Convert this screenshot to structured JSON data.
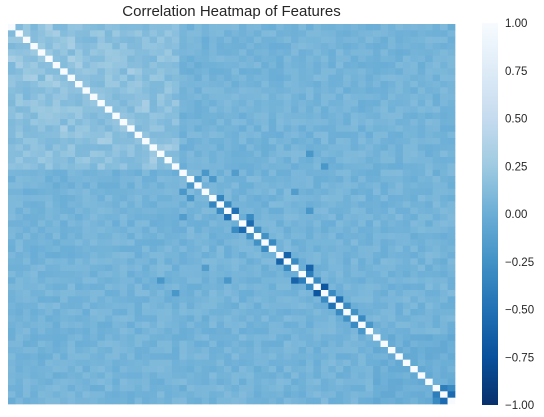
{
  "chart_data": {
    "type": "heatmap",
    "title": "Correlation Heatmap of Features",
    "xlabel": "",
    "ylabel": "",
    "value_range": [
      -1.0,
      1.0
    ],
    "n_features": 60,
    "show_axis_tick_labels": false,
    "grid": false,
    "colormap": "Blues_r",
    "colormap_stops": [
      "#08306b",
      "#08519c",
      "#2171b5",
      "#4292c6",
      "#6baed6",
      "#9ecae1",
      "#c6dbef",
      "#deebf7",
      "#f7fbff"
    ],
    "colorbar": {
      "placement": "right",
      "ticks": [
        -1.0,
        -0.75,
        -0.5,
        -0.25,
        0.0,
        0.25,
        0.5,
        0.75,
        1.0
      ],
      "tick_labels": [
        "−1.00",
        "−0.75",
        "−0.50",
        "−0.25",
        "0.00",
        "0.25",
        "0.50",
        "0.75",
        "1.00"
      ]
    },
    "typical_offdiagonal_value": 0.05,
    "diagonal_value": 1.0,
    "notable_correlations": [
      {
        "i": 0,
        "j": 5,
        "value": 0.3
      },
      {
        "i": 1,
        "j": 6,
        "value": 0.3
      },
      {
        "i": 2,
        "j": 8,
        "value": 0.28
      },
      {
        "i": 5,
        "j": 8,
        "value": 0.32
      },
      {
        "i": 6,
        "j": 9,
        "value": 0.3
      },
      {
        "i": 3,
        "j": 8,
        "value": 0.3
      },
      {
        "i": 0,
        "j": 2,
        "value": 0.22
      },
      {
        "i": 0,
        "j": 9,
        "value": 0.2
      },
      {
        "i": 1,
        "j": 11,
        "value": 0.22
      },
      {
        "i": 2,
        "j": 12,
        "value": 0.2
      },
      {
        "i": 3,
        "j": 13,
        "value": 0.22
      },
      {
        "i": 4,
        "j": 14,
        "value": 0.22
      },
      {
        "i": 6,
        "j": 13,
        "value": 0.25
      },
      {
        "i": 7,
        "j": 16,
        "value": 0.3
      },
      {
        "i": 8,
        "j": 15,
        "value": 0.22
      },
      {
        "i": 10,
        "j": 16,
        "value": 0.22
      },
      {
        "i": 12,
        "j": 18,
        "value": 0.3
      },
      {
        "i": 13,
        "j": 18,
        "value": 0.28
      },
      {
        "i": 14,
        "j": 19,
        "value": 0.2
      },
      {
        "i": 16,
        "j": 20,
        "value": 0.2
      },
      {
        "i": 18,
        "j": 22,
        "value": 0.2
      },
      {
        "i": 19,
        "j": 21,
        "value": 0.3
      },
      {
        "i": 23,
        "j": 26,
        "value": -0.2
      },
      {
        "i": 24,
        "j": 25,
        "value": -0.2
      },
      {
        "i": 24,
        "j": 27,
        "value": -0.2
      },
      {
        "i": 27,
        "j": 28,
        "value": -0.35
      },
      {
        "i": 28,
        "j": 29,
        "value": -0.3
      },
      {
        "i": 29,
        "j": 30,
        "value": -0.5
      },
      {
        "i": 30,
        "j": 32,
        "value": -0.3
      },
      {
        "i": 31,
        "j": 32,
        "value": -0.55
      },
      {
        "i": 32,
        "j": 33,
        "value": -0.25
      },
      {
        "i": 33,
        "j": 34,
        "value": -0.25
      },
      {
        "i": 34,
        "j": 35,
        "value": -0.3
      },
      {
        "i": 36,
        "j": 37,
        "value": -0.6
      },
      {
        "i": 37,
        "j": 38,
        "value": -0.3
      },
      {
        "i": 38,
        "j": 40,
        "value": -0.6
      },
      {
        "i": 39,
        "j": 40,
        "value": -0.4
      },
      {
        "i": 40,
        "j": 41,
        "value": -0.3
      },
      {
        "i": 41,
        "j": 42,
        "value": -0.7
      },
      {
        "i": 42,
        "j": 43,
        "value": -0.3
      },
      {
        "i": 43,
        "j": 44,
        "value": -0.5
      },
      {
        "i": 44,
        "j": 45,
        "value": -0.3
      },
      {
        "i": 45,
        "j": 46,
        "value": -0.25
      },
      {
        "i": 46,
        "j": 47,
        "value": -0.3
      },
      {
        "i": 47,
        "j": 48,
        "value": -0.2
      },
      {
        "i": 57,
        "j": 58,
        "value": -0.4
      },
      {
        "i": 58,
        "j": 59,
        "value": -0.55
      },
      {
        "i": 57,
        "j": 59,
        "value": -0.3
      },
      {
        "i": 20,
        "j": 40,
        "value": -0.2
      },
      {
        "i": 22,
        "j": 42,
        "value": -0.2
      },
      {
        "i": 23,
        "j": 30,
        "value": -0.15
      },
      {
        "i": 26,
        "j": 38,
        "value": -0.15
      },
      {
        "i": 29,
        "j": 40,
        "value": -0.2
      }
    ],
    "blocks": [
      {
        "rows": [
          0,
          22
        ],
        "cols": [
          0,
          22
        ],
        "value_range": [
          0.08,
          0.24
        ]
      },
      {
        "rows": [
          49,
          59
        ],
        "cols": [
          49,
          59
        ],
        "value_range": [
          -0.05,
          0.05
        ]
      }
    ]
  }
}
